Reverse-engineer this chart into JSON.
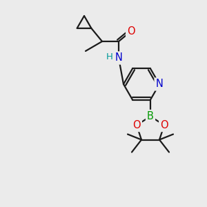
{
  "bg_color": "#ebebeb",
  "bond_color": "#1a1a1a",
  "bond_width": 1.6,
  "atom_colors": {
    "O": "#dd0000",
    "N": "#0000cc",
    "B": "#009900",
    "H": "#009999",
    "C": "#1a1a1a"
  },
  "font_size": 9.5,
  "fig_size": [
    3.0,
    3.0
  ],
  "dpi": 100
}
